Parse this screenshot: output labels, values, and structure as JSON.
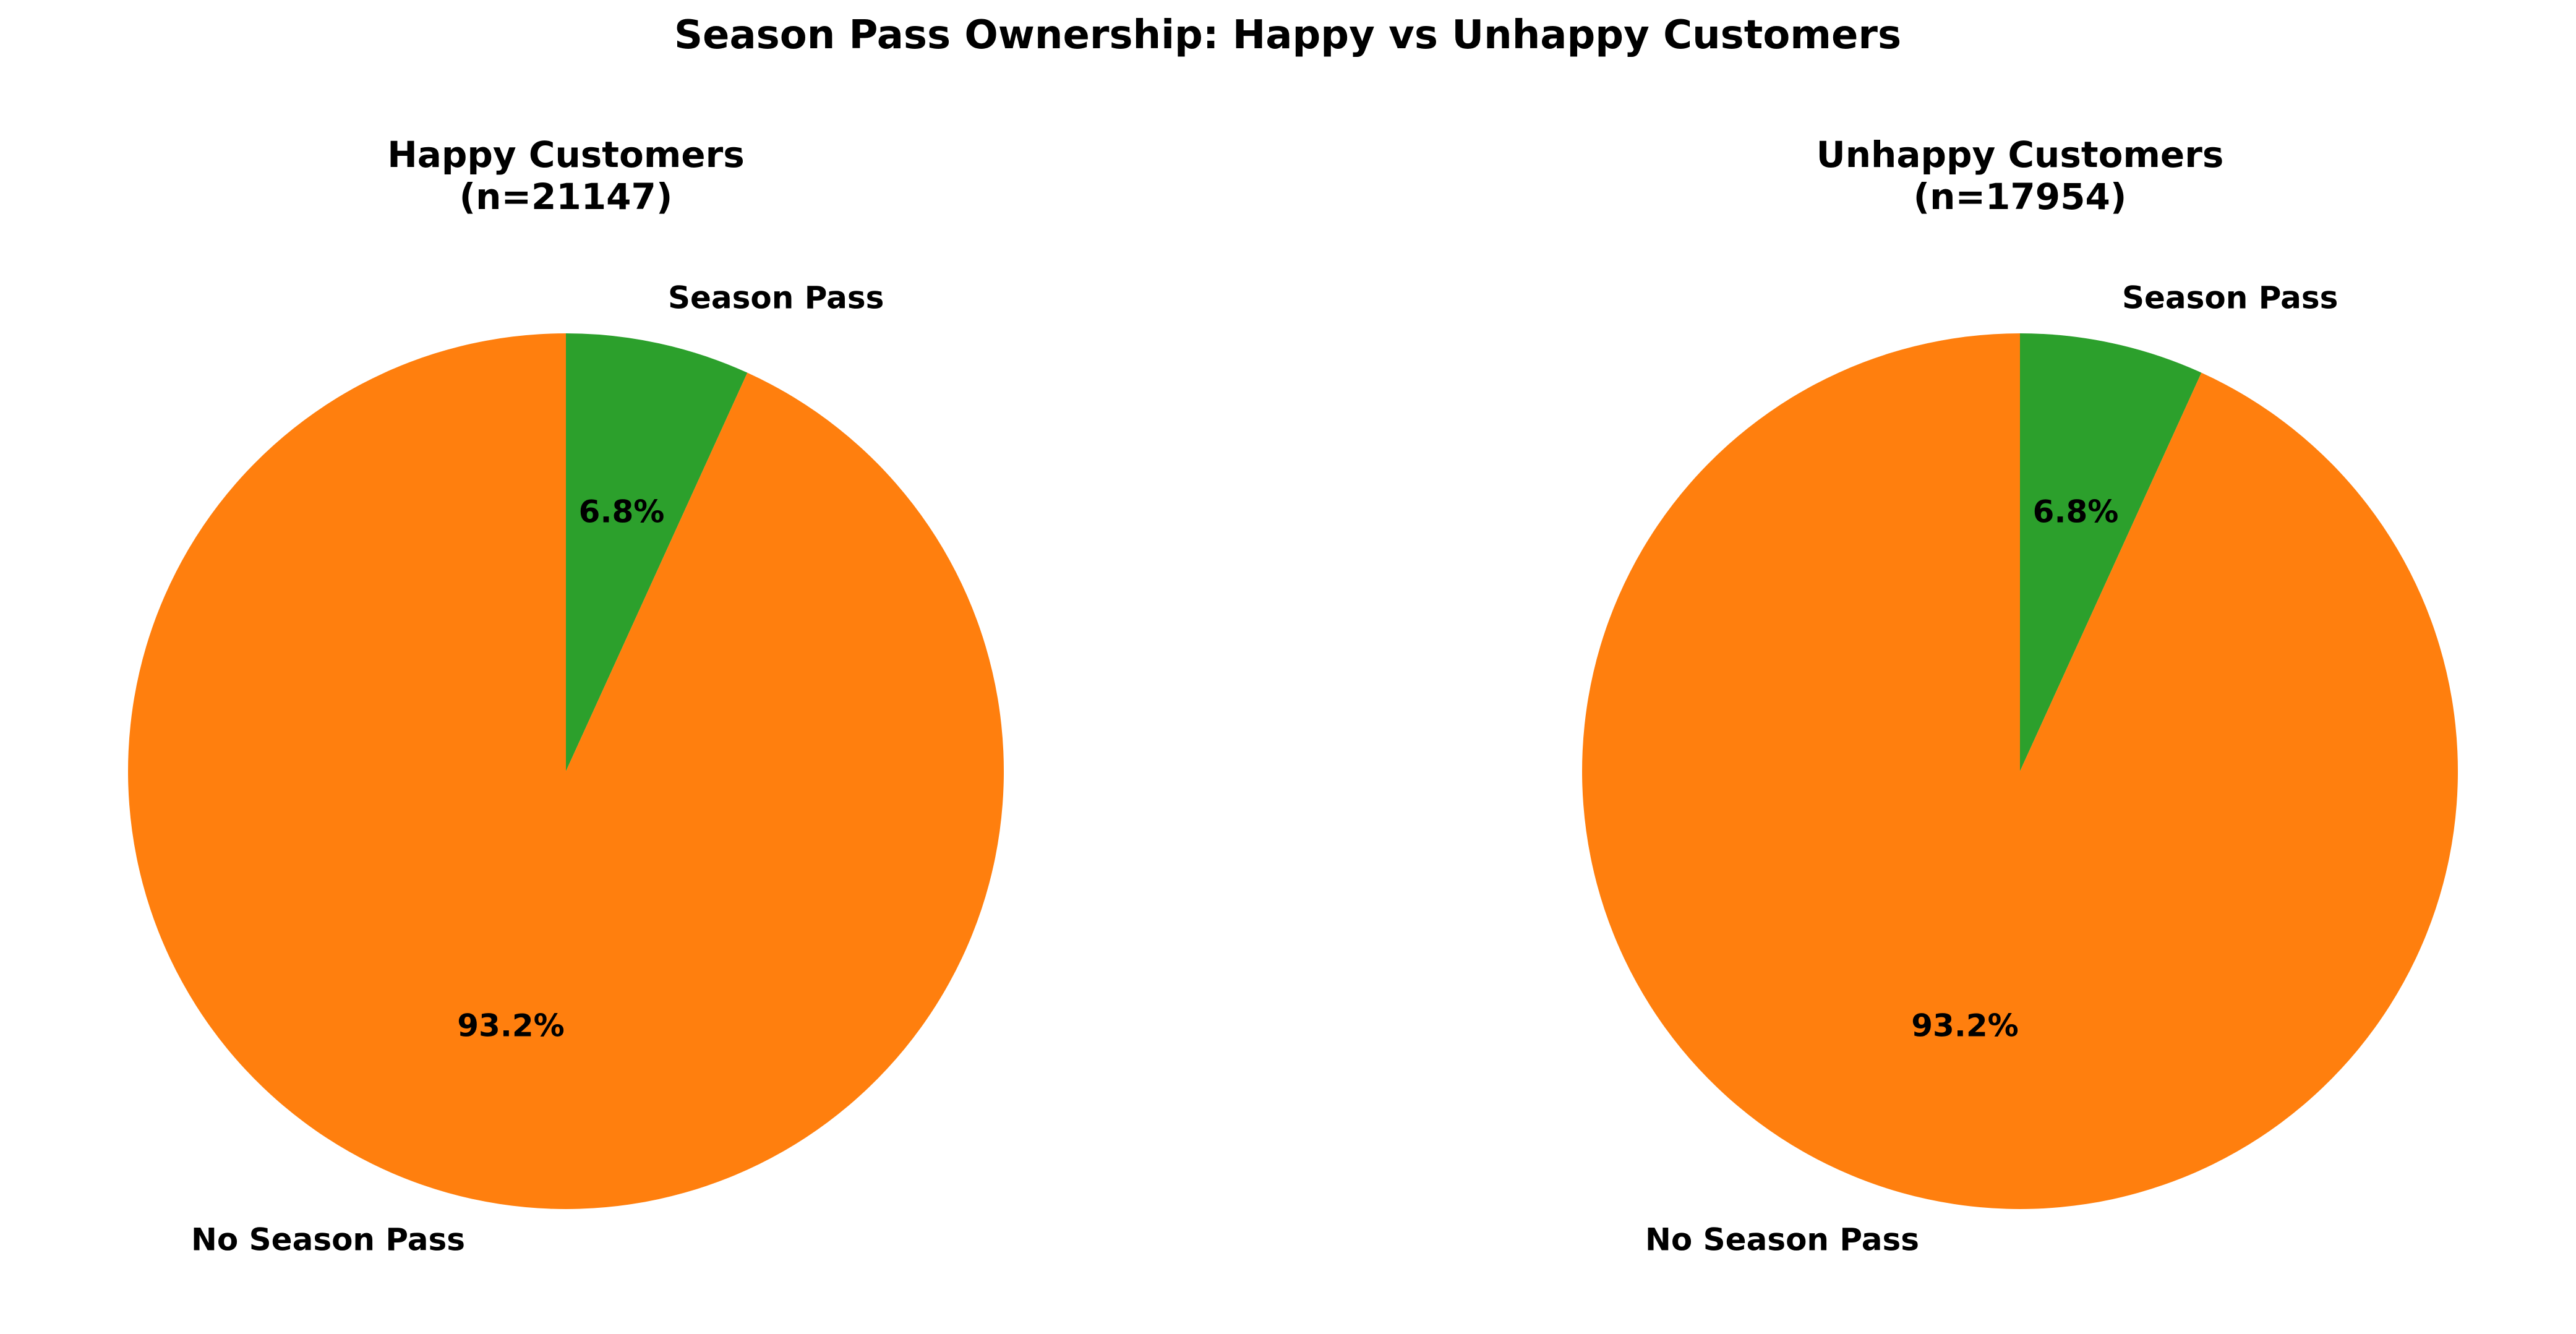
{
  "figure": {
    "title": "Season Pass Ownership: Happy vs Unhappy Customers"
  },
  "chart_data": [
    {
      "type": "pie",
      "title": "Happy Customers\n(n=21147)",
      "title_lines": [
        "Happy Customers",
        "(n=21147)"
      ],
      "labels": [
        "Season Pass",
        "No Season Pass"
      ],
      "values": [
        6.8,
        93.2
      ],
      "value_labels": [
        "6.8%",
        "93.2%"
      ],
      "colors": [
        "#2ca02c",
        "#ff7f0e"
      ],
      "start_angle_deg": 90,
      "direction": "clockwise"
    },
    {
      "type": "pie",
      "title": "Unhappy Customers\n(n=17954)",
      "title_lines": [
        "Unhappy Customers",
        "(n=17954)"
      ],
      "labels": [
        "Season Pass",
        "No Season Pass"
      ],
      "values": [
        6.8,
        93.2
      ],
      "value_labels": [
        "6.8%",
        "93.2%"
      ],
      "colors": [
        "#2ca02c",
        "#ff7f0e"
      ],
      "start_angle_deg": 90,
      "direction": "clockwise"
    }
  ]
}
